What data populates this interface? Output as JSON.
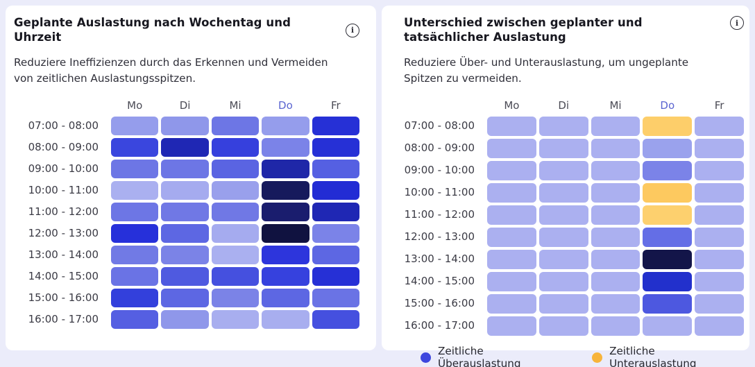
{
  "page": {
    "background_color": "#ebecfa"
  },
  "icons": {
    "info_glyph": "i"
  },
  "left_panel": {
    "title": "Geplante Auslastung nach Wochentag und Uhrzeit",
    "subtitle": "Reduziere Ineffizienzen durch das Erkennen und Vermeiden von zeitlichen Auslastungsspitzen."
  },
  "right_panel": {
    "title": "Unterschied zwischen geplanter und tatsächlicher Auslastung",
    "subtitle": "Reduziere Über- und Unterauslastung, um ungeplante Spitzen zu vermeiden.",
    "legend": {
      "items": [
        {
          "label": "Zeitliche Überauslastung",
          "color": "#3d46de"
        },
        {
          "label": "Zeitliche Unterauslastung",
          "color": "#f7b43b"
        }
      ]
    }
  },
  "chart_data": [
    {
      "type": "heatmap",
      "title": "Geplante Auslastung nach Wochentag und Uhrzeit",
      "columns": [
        "Mo",
        "Di",
        "Mi",
        "Do",
        "Fr"
      ],
      "highlighted_column": "Do",
      "rows": [
        "07:00 - 08:00",
        "08:00 - 09:00",
        "09:00 - 10:00",
        "10:00 - 11:00",
        "11:00 - 12:00",
        "12:00 - 13:00",
        "13:00 - 14:00",
        "14:00 - 15:00",
        "15:00 - 16:00",
        "16:00 - 17:00"
      ],
      "encoding": "Zellenfarbe kodiert geplante Auslastung: dunkler/gesättigter Blau = höhere Auslastung, helles Lavendel = niedrige Auslastung",
      "cell_colors": [
        [
          "#959dec",
          "#8f97ea",
          "#6d76e5",
          "#959dec",
          "#2630d6"
        ],
        [
          "#3a46de",
          "#1f27b4",
          "#3640dd",
          "#7b83e8",
          "#2630d6"
        ],
        [
          "#6d76e5",
          "#6d76e5",
          "#5a64e2",
          "#1f27a8",
          "#5560e2"
        ],
        [
          "#aab0f0",
          "#a5abef",
          "#99a0ec",
          "#161a5c",
          "#222cd4"
        ],
        [
          "#6d76e5",
          "#7078e5",
          "#7078e5",
          "#1a1d6e",
          "#1f27b4"
        ],
        [
          "#2630da",
          "#5d67e3",
          "#a5abef",
          "#101240",
          "#7b83e8"
        ],
        [
          "#717ae5",
          "#7b83e7",
          "#aab0f0",
          "#2d35dc",
          "#5d67e3"
        ],
        [
          "#6a73e5",
          "#4f5ae0",
          "#4550df",
          "#3641de",
          "#2630d6"
        ],
        [
          "#3340dc",
          "#5d67e3",
          "#7b83e7",
          "#5d67e3",
          "#6a73e5"
        ],
        [
          "#555fe2",
          "#8f97ea",
          "#a8aeef",
          "#a8aeef",
          "#4550df"
        ]
      ]
    },
    {
      "type": "heatmap",
      "title": "Unterschied zwischen geplanter und tatsächlicher Auslastung",
      "columns": [
        "Mo",
        "Di",
        "Mi",
        "Do",
        "Fr"
      ],
      "highlighted_column": "Do",
      "rows": [
        "07:00 - 08:00",
        "08:00 - 09:00",
        "09:00 - 10:00",
        "10:00 - 11:00",
        "11:00 - 12:00",
        "12:00 - 13:00",
        "13:00 - 14:00",
        "14:00 - 15:00",
        "15:00 - 16:00",
        "16:00 - 17:00"
      ],
      "encoding": "Lavendel = neutral, Blau (dunkler = stärker) = zeitliche Überauslastung, Gelb = zeitliche Unterauslastung; Abweichungen nur in Spalte Do",
      "cell_colors": [
        [
          "#abb0f0",
          "#abb0f0",
          "#abb0f0",
          "#fdce6a",
          "#abb0f0"
        ],
        [
          "#abb0f0",
          "#abb0f0",
          "#abb0f0",
          "#9aa2ed",
          "#abb0f0"
        ],
        [
          "#abb0f0",
          "#abb0f0",
          "#abb0f0",
          "#7b83e8",
          "#abb0f0"
        ],
        [
          "#abb0f0",
          "#abb0f0",
          "#abb0f0",
          "#fdc95f",
          "#abb0f0"
        ],
        [
          "#abb0f0",
          "#abb0f0",
          "#abb0f0",
          "#fdd06e",
          "#abb0f0"
        ],
        [
          "#abb0f0",
          "#abb0f0",
          "#abb0f0",
          "#646ee6",
          "#abb0f0"
        ],
        [
          "#abb0f0",
          "#abb0f0",
          "#abb0f0",
          "#131549",
          "#abb0f0"
        ],
        [
          "#abb0f0",
          "#abb0f0",
          "#abb0f0",
          "#2230cc",
          "#abb0f0"
        ],
        [
          "#abb0f0",
          "#abb0f0",
          "#abb0f0",
          "#4d58e0",
          "#abb0f0"
        ],
        [
          "#abb0f0",
          "#abb0f0",
          "#abb0f0",
          "#abb0f0",
          "#abb0f0"
        ]
      ],
      "legend": [
        {
          "label": "Zeitliche Überauslastung",
          "color": "#3d46de"
        },
        {
          "label": "Zeitliche Unterauslastung",
          "color": "#f7b43b"
        }
      ]
    }
  ]
}
